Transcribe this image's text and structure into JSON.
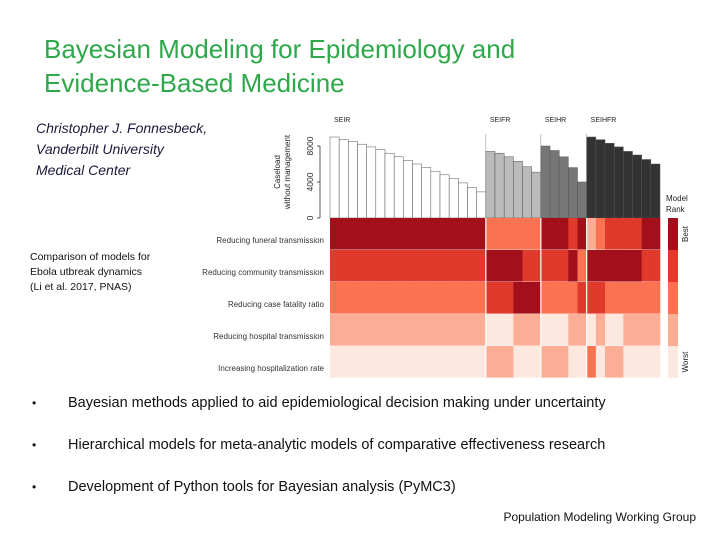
{
  "slide": {
    "title_lines": [
      "Bayesian Modeling for Epidemiology and",
      "Evidence-Based Medicine"
    ],
    "author_lines": [
      "Christopher J. Fonnesbeck,",
      "Vanderbilt University",
      "Medical Center"
    ],
    "caption_lines": [
      "Comparison of models for",
      "Ebola utbreak dynamics",
      "(Li et al. 2017, PNAS)"
    ],
    "bullets": [
      "Bayesian methods applied to aid epidemiological decision making under uncertainty",
      "Hierarchical models for meta-analytic models of comparative effectiveness research",
      "Development of Python tools for Bayesian analysis (PyMC3)"
    ],
    "bullet_glyph": "•",
    "footer": "Population Modeling Working Group",
    "colors": {
      "title": "#2ea84a",
      "author": "#1a1a3a"
    }
  },
  "chart_data": {
    "type": "heatmap",
    "model_groups": [
      "SEIR",
      "SEIFR",
      "SEIHR",
      "SEIHFR"
    ],
    "ylabel": "Caseload without management",
    "y_ticks": [
      "0",
      "4000",
      "8000"
    ],
    "ylim": [
      0,
      10000
    ],
    "group_bar_values": [
      [
        9000,
        8700,
        8500,
        8200,
        7900,
        7600,
        7200,
        6800,
        6400,
        6000,
        5600,
        5200,
        4800,
        4400,
        3900,
        3400,
        2900
      ],
      [
        7400,
        7200,
        6800,
        6300,
        5700,
        5100
      ],
      [
        8000,
        7500,
        6800,
        5600,
        4000
      ],
      [
        9000,
        8700,
        8300,
        7900,
        7400,
        7000,
        6500,
        6000
      ]
    ],
    "bar_colors": [
      "#ffffff",
      "#bbbbbb",
      "#777777",
      "#333333"
    ],
    "interventions": [
      "Reducing funeral transmission",
      "Reducing community transmission",
      "Reducing case fatality ratio",
      "Reducing hospital transmission",
      "Increasing hospitalization rate"
    ],
    "rank_matrix": [
      [
        1,
        1,
        1,
        1,
        1,
        1,
        1,
        1,
        1,
        1,
        1,
        1,
        1,
        1,
        1,
        1,
        1,
        3,
        3,
        3,
        3,
        3,
        3,
        1,
        1,
        1,
        2,
        1,
        4,
        3,
        2,
        2,
        2,
        2,
        1,
        1
      ],
      [
        2,
        2,
        2,
        2,
        2,
        2,
        2,
        2,
        2,
        2,
        2,
        2,
        2,
        2,
        2,
        2,
        2,
        1,
        1,
        1,
        1,
        2,
        2,
        2,
        2,
        2,
        1,
        3,
        1,
        1,
        1,
        1,
        1,
        1,
        2,
        2
      ],
      [
        3,
        3,
        3,
        3,
        3,
        3,
        3,
        3,
        3,
        3,
        3,
        3,
        3,
        3,
        3,
        3,
        3,
        2,
        2,
        2,
        1,
        1,
        1,
        3,
        3,
        3,
        3,
        2,
        2,
        2,
        3,
        3,
        3,
        3,
        3,
        3
      ],
      [
        4,
        4,
        4,
        4,
        4,
        4,
        4,
        4,
        4,
        4,
        4,
        4,
        4,
        4,
        4,
        4,
        4,
        5,
        5,
        5,
        4,
        4,
        4,
        5,
        5,
        5,
        4,
        4,
        5,
        4,
        5,
        5,
        4,
        4,
        4,
        4
      ],
      [
        5,
        5,
        5,
        5,
        5,
        5,
        5,
        5,
        5,
        5,
        5,
        5,
        5,
        5,
        5,
        5,
        5,
        4,
        4,
        4,
        5,
        5,
        5,
        4,
        4,
        4,
        5,
        5,
        3,
        5,
        4,
        4,
        5,
        5,
        5,
        5
      ]
    ],
    "rank_colors": [
      "#a30f1a",
      "#e03a2c",
      "#fb7250",
      "#fcad96",
      "#fde8df"
    ],
    "legend_title": [
      "Model",
      "Rank"
    ],
    "legend_labels": [
      "Best",
      "Worst"
    ]
  }
}
